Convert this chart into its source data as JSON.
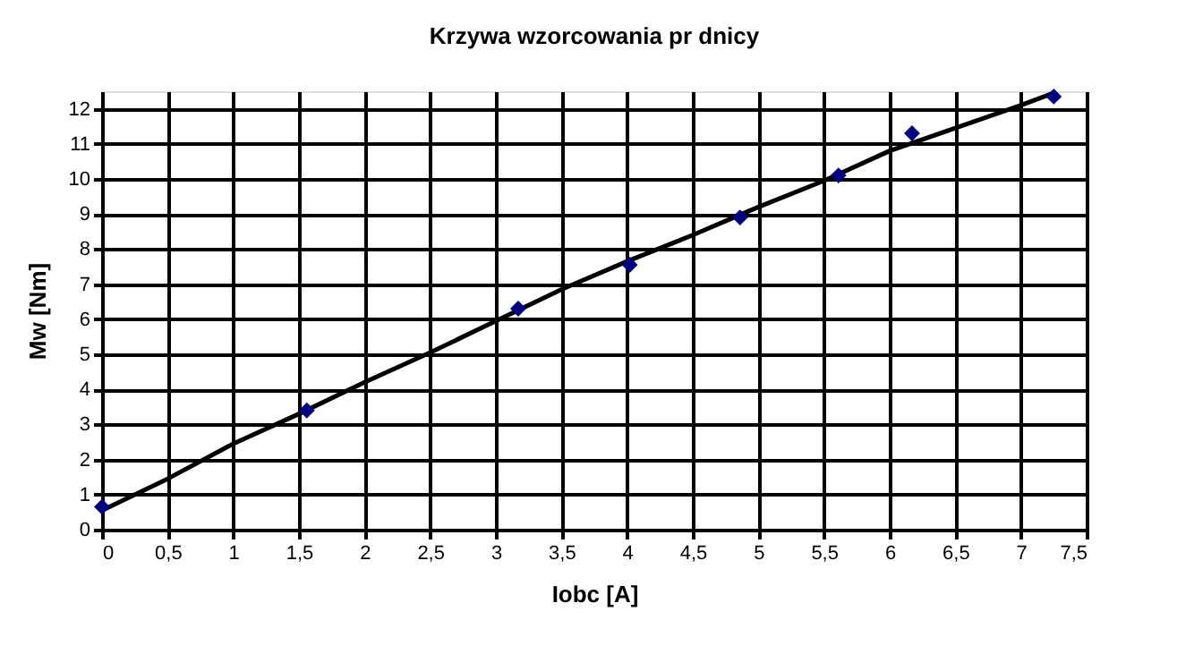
{
  "chart_data": {
    "type": "scatter",
    "title": "Krzywa wzorcowania pr  dnicy",
    "xlabel": "Iobc [A]",
    "ylabel": "Mw [Nm]",
    "series": [
      {
        "type": "line",
        "color": "#000000",
        "marker": "none",
        "line_style": "solid",
        "x": [
          0,
          0.5,
          1,
          1.5,
          2,
          2.5,
          3,
          3.5,
          4,
          4.5,
          5,
          5.5,
          6,
          6.5,
          7,
          7.25
        ],
        "values": [
          0.55,
          1.45,
          2.45,
          3.3,
          4.2,
          5.05,
          5.95,
          6.85,
          7.65,
          8.4,
          9.2,
          9.95,
          10.8,
          11.45,
          12.1,
          12.45
        ]
      },
      {
        "color": "#000080",
        "marker": "diamond",
        "x": [
          0,
          1.56,
          3.17,
          4.02,
          4.86,
          5.61,
          6.17,
          7.25
        ],
        "values": [
          0.65,
          3.4,
          6.3,
          7.55,
          8.9,
          10.1,
          11.3,
          12.35
        ]
      }
    ],
    "xlim": [
      0,
      7.5
    ],
    "xticks": [
      0,
      {
        "value": 0.5,
        "label": "0,5"
      },
      1,
      {
        "value": 1.5,
        "label": "1,5"
      },
      2,
      {
        "value": 2.5,
        "label": "2,5"
      },
      3,
      {
        "value": 3.5,
        "label": "3,5"
      },
      4,
      {
        "value": 4.5,
        "label": "4,5"
      },
      5,
      {
        "value": 5.5,
        "label": "5,5"
      },
      6,
      {
        "value": 6.5,
        "label": "6,5"
      },
      7,
      {
        "value": 7.5,
        "label": "7,5"
      }
    ],
    "ylim": [
      0,
      12.5
    ],
    "yticks": [
      0,
      1,
      2,
      3,
      4,
      5,
      6,
      7,
      8,
      9,
      10,
      11,
      12
    ],
    "grid": true
  }
}
